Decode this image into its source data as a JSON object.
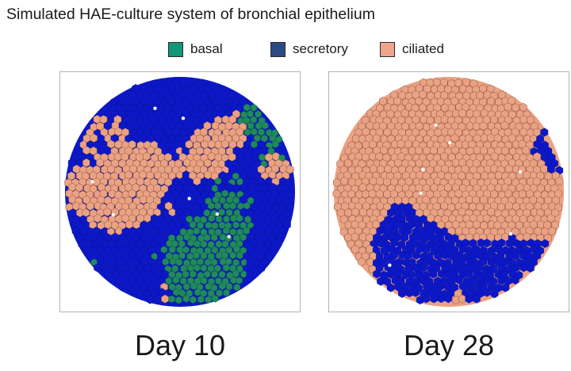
{
  "title": "Simulated HAE-culture system of bronchial epithelium",
  "colors": {
    "basal": "#1f8a5c",
    "secretory": "#0c18c8",
    "ciliated": "#eba283",
    "cell_edge": "#7a4a3a"
  },
  "legend": [
    {
      "label": "basal",
      "color": "#12967a"
    },
    {
      "label": "secretory",
      "color": "#2c4a86"
    },
    {
      "label": "ciliated",
      "color": "#eea58c"
    }
  ],
  "panels": [
    {
      "label": "Day 10",
      "composition": {
        "basal": 0.22,
        "secretory": 0.48,
        "ciliated": 0.3
      }
    },
    {
      "label": "Day 28",
      "composition": {
        "basal": 0.0,
        "secretory": 0.28,
        "ciliated": 0.72
      }
    }
  ]
}
